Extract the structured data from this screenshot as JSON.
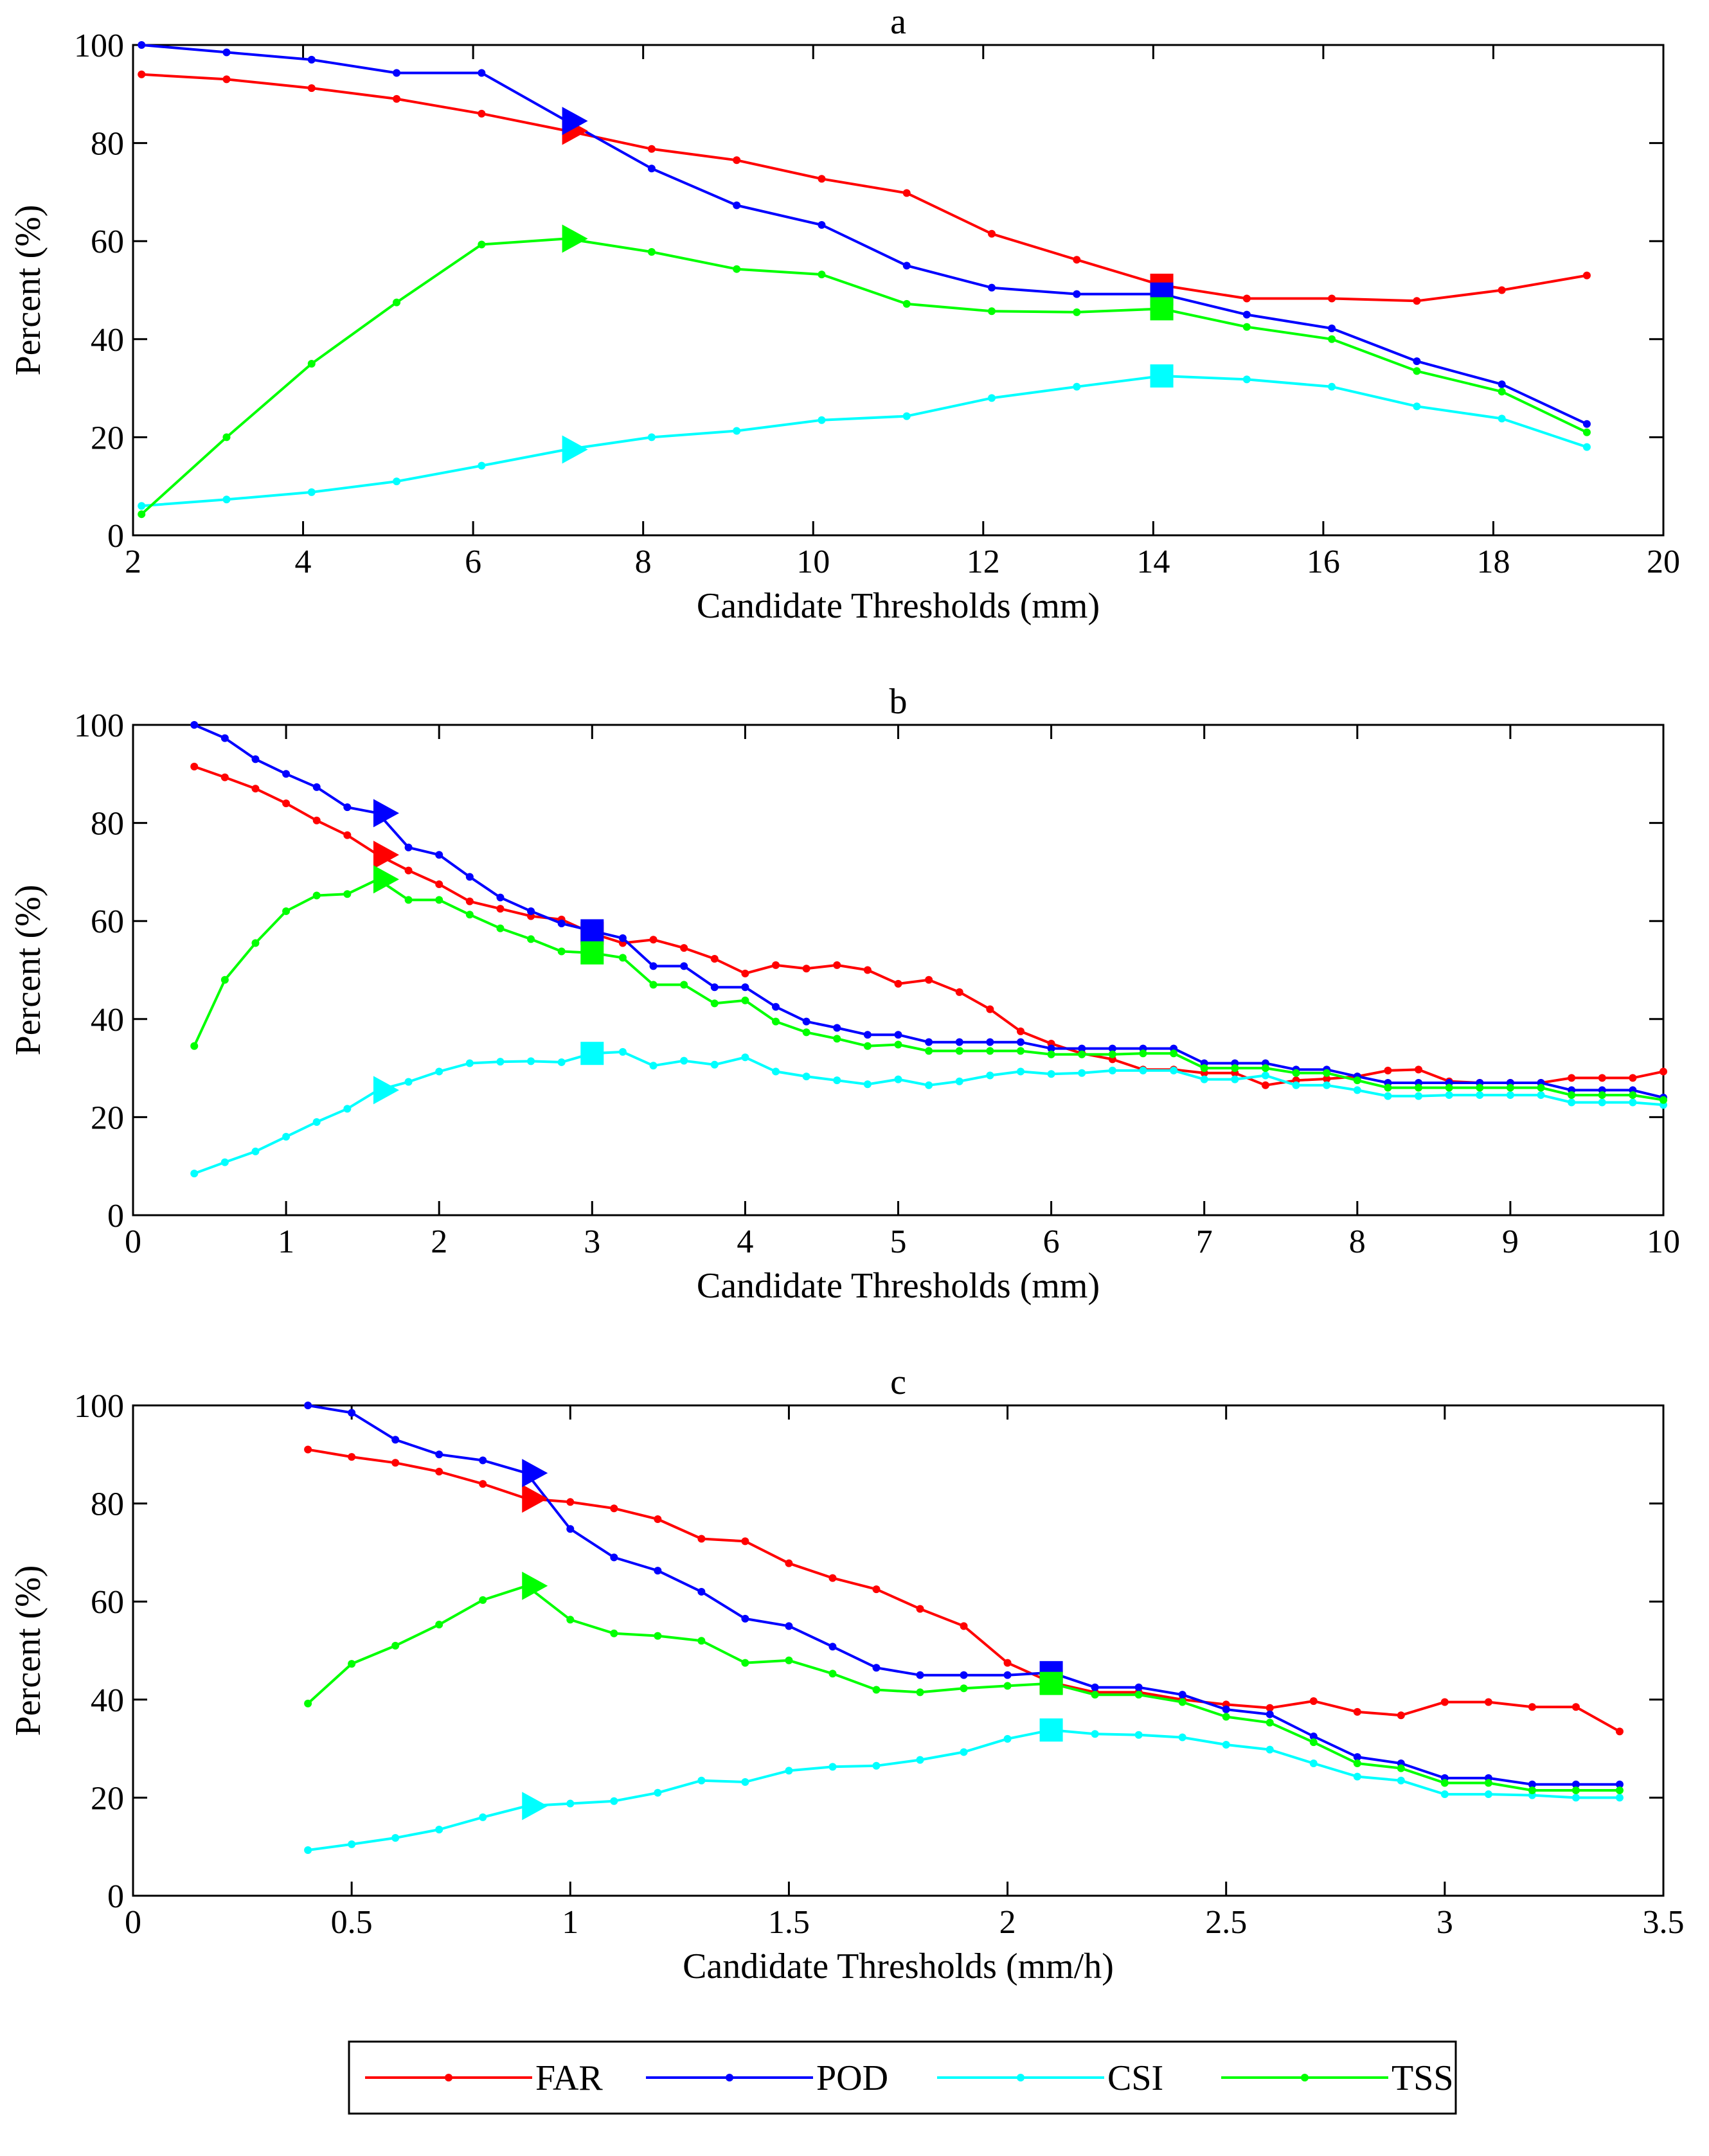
{
  "chart_data": [
    {
      "type": "line",
      "title": "a",
      "xlabel": "Candidate Thresholds (mm)",
      "ylabel": "Percent (%)",
      "xlim": [
        2,
        20
      ],
      "ylim": [
        0,
        100
      ],
      "xticks": [
        2,
        4,
        6,
        8,
        10,
        12,
        14,
        16,
        18,
        20
      ],
      "xtick_labels": [
        "2",
        "4",
        "6",
        "8",
        "10",
        "12",
        "14",
        "16",
        "18",
        "20"
      ],
      "yticks": [
        0,
        20,
        40,
        60,
        80,
        100
      ],
      "ytick_labels": [
        "0",
        "20",
        "40",
        "60",
        "80",
        "100"
      ],
      "grid": false,
      "x": [
        2.1,
        3.1,
        4.1,
        5.1,
        6.1,
        7.1,
        8.1,
        9.1,
        10.1,
        11.1,
        12.1,
        13.1,
        14.1,
        15.1,
        16.1,
        17.1,
        18.1,
        19.1
      ],
      "series": [
        {
          "name": "FAR",
          "color": "#ff0000",
          "values": [
            94,
            93,
            91.2,
            89,
            86,
            82.5,
            78.8,
            76.5,
            72.7,
            69.8,
            61.5,
            56.2,
            51,
            48.3,
            48.3,
            47.8,
            50,
            53
          ]
        },
        {
          "name": "POD",
          "color": "#0000ff",
          "values": [
            100,
            98.5,
            97,
            94.3,
            94.3,
            84.5,
            74.8,
            67.3,
            63.3,
            55,
            50.5,
            49.2,
            49.2,
            45,
            42.2,
            35.5,
            30.8,
            22.7
          ]
        },
        {
          "name": "CSI",
          "color": "#00ffff",
          "values": [
            6,
            7.3,
            8.8,
            11,
            14.2,
            17.5,
            20,
            21.3,
            23.5,
            24.3,
            28,
            30.3,
            32.5,
            31.8,
            30.3,
            26.3,
            23.8,
            18
          ]
        },
        {
          "name": "TSS",
          "color": "#00ff00",
          "values": [
            4.3,
            20,
            35,
            47.5,
            59.3,
            60.5,
            57.8,
            54.3,
            53.2,
            47.2,
            45.7,
            45.5,
            46.2,
            42.5,
            40,
            33.5,
            29.3,
            21
          ]
        }
      ],
      "triangle_markers": [
        {
          "series": "FAR",
          "x": 7.1,
          "y": 82.5
        },
        {
          "series": "POD",
          "x": 7.1,
          "y": 84.5
        },
        {
          "series": "CSI",
          "x": 7.1,
          "y": 17.5
        },
        {
          "series": "TSS",
          "x": 7.1,
          "y": 60.5
        }
      ],
      "square_markers": [
        {
          "series": "FAR",
          "x": 14.1,
          "y": 51
        },
        {
          "series": "POD",
          "x": 14.1,
          "y": 49.2
        },
        {
          "series": "CSI",
          "x": 14.1,
          "y": 32.5
        },
        {
          "series": "TSS",
          "x": 14.1,
          "y": 46.2
        }
      ]
    },
    {
      "type": "line",
      "title": "b",
      "xlabel": "Candidate Thresholds (mm)",
      "ylabel": "Percent (%)",
      "xlim": [
        0,
        10
      ],
      "ylim": [
        0,
        100
      ],
      "xticks": [
        0,
        1,
        2,
        3,
        4,
        5,
        6,
        7,
        8,
        9,
        10
      ],
      "xtick_labels": [
        "0",
        "1",
        "2",
        "3",
        "4",
        "5",
        "6",
        "7",
        "8",
        "9",
        "10"
      ],
      "yticks": [
        0,
        20,
        40,
        60,
        80,
        100
      ],
      "ytick_labels": [
        "0",
        "20",
        "40",
        "60",
        "80",
        "100"
      ],
      "grid": false,
      "x": [
        0.4,
        0.6,
        0.8,
        1.0,
        1.2,
        1.4,
        1.6,
        1.8,
        2.0,
        2.2,
        2.4,
        2.6,
        2.8,
        3.0,
        3.2,
        3.4,
        3.6,
        3.8,
        4.0,
        4.2,
        4.4,
        4.6,
        4.8,
        5.0,
        5.2,
        5.4,
        5.6,
        5.8,
        6.0,
        6.2,
        6.4,
        6.6,
        6.8,
        7.0,
        7.2,
        7.4,
        7.6,
        7.8,
        8.0,
        8.2,
        8.4,
        8.6,
        8.8,
        9.0,
        9.2,
        9.4,
        9.6,
        9.8,
        10.0
      ],
      "series": [
        {
          "name": "FAR",
          "color": "#ff0000",
          "values": [
            91.5,
            89.3,
            87,
            84,
            80.5,
            77.5,
            73.5,
            70.3,
            67.5,
            64,
            62.5,
            61,
            60.3,
            57.5,
            55.5,
            56.2,
            54.5,
            52.3,
            49.3,
            51,
            50.3,
            51,
            50,
            47.2,
            48,
            45.5,
            42,
            37.5,
            35,
            33,
            31.8,
            29.7,
            29.7,
            29,
            29,
            26.5,
            27.5,
            27.8,
            28.3,
            29.5,
            29.7,
            27.3,
            27,
            27,
            27,
            28,
            28,
            28,
            29.3
          ]
        },
        {
          "name": "POD",
          "color": "#0000ff",
          "values": [
            100,
            97.3,
            93,
            90,
            87.3,
            83.2,
            82,
            75,
            73.5,
            69,
            64.8,
            62,
            59.5,
            58,
            56.5,
            50.8,
            50.8,
            46.5,
            46.5,
            42.5,
            39.5,
            38.2,
            36.8,
            36.8,
            35.3,
            35.3,
            35.3,
            35.3,
            34,
            34,
            34,
            34,
            34,
            31,
            31,
            31,
            29.7,
            29.7,
            28.3,
            27,
            27,
            27,
            27,
            27,
            27,
            25.5,
            25.5,
            25.5,
            24
          ]
        },
        {
          "name": "CSI",
          "color": "#00ffff",
          "values": [
            8.5,
            10.8,
            13,
            16,
            19,
            21.7,
            25.5,
            27.2,
            29.3,
            31,
            31.3,
            31.4,
            31.2,
            33,
            33.3,
            30.5,
            31.5,
            30.7,
            32.2,
            29.3,
            28.3,
            27.5,
            26.7,
            27.7,
            26.5,
            27.3,
            28.5,
            29.3,
            28.8,
            29,
            29.5,
            29.5,
            29.5,
            27.7,
            27.7,
            28.5,
            26.5,
            26.5,
            25.5,
            24.3,
            24.3,
            24.5,
            24.5,
            24.5,
            24.5,
            23,
            23,
            23,
            22.5
          ]
        },
        {
          "name": "TSS",
          "color": "#00ff00",
          "values": [
            34.5,
            48,
            55.5,
            62,
            65.2,
            65.5,
            68.5,
            64.3,
            64.3,
            61.3,
            58.5,
            56.3,
            53.8,
            53.5,
            52.5,
            47,
            47,
            43.2,
            43.8,
            39.5,
            37.3,
            36,
            34.5,
            34.8,
            33.5,
            33.5,
            33.5,
            33.5,
            32.8,
            32.8,
            32.8,
            33,
            33,
            30,
            30,
            30,
            29,
            29,
            27.5,
            26,
            26,
            26,
            26,
            26,
            26,
            24.5,
            24.5,
            24.5,
            23.5
          ]
        }
      ],
      "triangle_markers": [
        {
          "series": "FAR",
          "x": 1.6,
          "y": 73.5
        },
        {
          "series": "POD",
          "x": 1.6,
          "y": 82
        },
        {
          "series": "CSI",
          "x": 1.6,
          "y": 25.5
        },
        {
          "series": "TSS",
          "x": 1.6,
          "y": 68.5
        }
      ],
      "square_markers": [
        {
          "series": "FAR",
          "x": 3.0,
          "y": 57.5
        },
        {
          "series": "POD",
          "x": 3.0,
          "y": 58
        },
        {
          "series": "CSI",
          "x": 3.0,
          "y": 33
        },
        {
          "series": "TSS",
          "x": 3.0,
          "y": 53.5
        }
      ]
    },
    {
      "type": "line",
      "title": "c",
      "xlabel": "Candidate Thresholds (mm/h)",
      "ylabel": "Percent (%)",
      "xlim": [
        0,
        3.5
      ],
      "ylim": [
        0,
        100
      ],
      "xticks": [
        0,
        0.5,
        1,
        1.5,
        2,
        2.5,
        3,
        3.5
      ],
      "xtick_labels": [
        "0",
        "0.5",
        "1",
        "1.5",
        "2",
        "2.5",
        "3",
        "3.5"
      ],
      "yticks": [
        0,
        20,
        40,
        60,
        80,
        100
      ],
      "ytick_labels": [
        "0",
        "20",
        "40",
        "60",
        "80",
        "100"
      ],
      "grid": false,
      "x": [
        0.4,
        0.5,
        0.6,
        0.7,
        0.8,
        0.9,
        1.0,
        1.1,
        1.2,
        1.3,
        1.4,
        1.5,
        1.6,
        1.7,
        1.8,
        1.9,
        2.0,
        2.1,
        2.2,
        2.3,
        2.4,
        2.5,
        2.6,
        2.7,
        2.8,
        2.9,
        3.0,
        3.1,
        3.2,
        3.3,
        3.4
      ],
      "series": [
        {
          "name": "FAR",
          "color": "#ff0000",
          "values": [
            91,
            89.5,
            88.3,
            86.5,
            84,
            81,
            80.3,
            79,
            76.8,
            72.8,
            72.3,
            67.8,
            64.8,
            62.5,
            58.5,
            55,
            47.5,
            43.5,
            41.5,
            41.5,
            40,
            39,
            38.3,
            39.7,
            37.5,
            36.8,
            39.5,
            39.5,
            38.5,
            38.5,
            33.5
          ]
        },
        {
          "name": "POD",
          "color": "#0000ff",
          "values": [
            100,
            98.5,
            93,
            90,
            88.8,
            86.2,
            74.8,
            69,
            66.3,
            62,
            56.5,
            55,
            50.8,
            46.5,
            45,
            45,
            45,
            45.5,
            42.5,
            42.5,
            41,
            38,
            37,
            32.5,
            28.3,
            27,
            24,
            24,
            22.7,
            22.7,
            22.7
          ]
        },
        {
          "name": "CSI",
          "color": "#00ffff",
          "values": [
            9.3,
            10.5,
            11.8,
            13.5,
            16,
            18.3,
            18.8,
            19.3,
            21,
            23.5,
            23.2,
            25.5,
            26.3,
            26.5,
            27.7,
            29.3,
            32,
            33.8,
            33,
            32.8,
            32.3,
            30.8,
            29.8,
            27,
            24.3,
            23.5,
            20.7,
            20.7,
            20.5,
            20,
            20
          ]
        },
        {
          "name": "TSS",
          "color": "#00ff00",
          "values": [
            39.2,
            47.3,
            51,
            55.3,
            60.3,
            63.2,
            56.3,
            53.5,
            53,
            52,
            47.5,
            48,
            45.3,
            42,
            41.5,
            42.3,
            42.8,
            43.3,
            41,
            41,
            39.5,
            36.5,
            35.3,
            31.3,
            27,
            26,
            23,
            23,
            21.5,
            21.5,
            21.5
          ]
        }
      ],
      "triangle_markers": [
        {
          "series": "FAR",
          "x": 0.9,
          "y": 81
        },
        {
          "series": "POD",
          "x": 0.9,
          "y": 86.2
        },
        {
          "series": "CSI",
          "x": 0.9,
          "y": 18.3
        },
        {
          "series": "TSS",
          "x": 0.9,
          "y": 63.2
        }
      ],
      "square_markers": [
        {
          "series": "FAR",
          "x": 2.1,
          "y": 43.5
        },
        {
          "series": "POD",
          "x": 2.1,
          "y": 45.5
        },
        {
          "series": "CSI",
          "x": 2.1,
          "y": 33.8
        },
        {
          "series": "TSS",
          "x": 2.1,
          "y": 43.3
        }
      ]
    }
  ],
  "legend": {
    "placement": "bottom-center",
    "entries": [
      {
        "label": "FAR",
        "color": "#ff0000"
      },
      {
        "label": "POD",
        "color": "#0000ff"
      },
      {
        "label": "CSI",
        "color": "#00ffff"
      },
      {
        "label": "TSS",
        "color": "#00ff00"
      }
    ]
  }
}
